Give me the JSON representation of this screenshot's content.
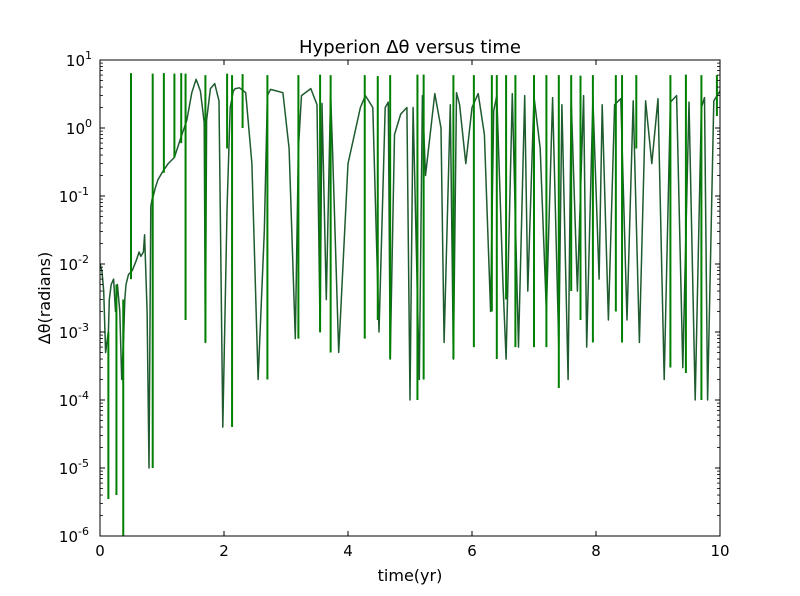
{
  "chart_data": {
    "type": "line",
    "title": "Hyperion Δθ versus time",
    "xlabel": "time(yr)",
    "ylabel": "Δθ(radians)",
    "xlim": [
      0,
      10
    ],
    "ylim": [
      1e-06,
      10
    ],
    "yscale": "log",
    "grid": false,
    "legend": "none",
    "x_ticks": [
      {
        "value": 0,
        "label": "0"
      },
      {
        "value": 2,
        "label": "2"
      },
      {
        "value": 4,
        "label": "4"
      },
      {
        "value": 6,
        "label": "6"
      },
      {
        "value": 8,
        "label": "8"
      },
      {
        "value": 10,
        "label": "10"
      }
    ],
    "y_ticks": [
      {
        "value": 1e-06,
        "base": "10",
        "exp": "-6"
      },
      {
        "value": 1e-05,
        "base": "10",
        "exp": "-5"
      },
      {
        "value": 0.0001,
        "base": "10",
        "exp": "-4"
      },
      {
        "value": 0.001,
        "base": "10",
        "exp": "-3"
      },
      {
        "value": 0.01,
        "base": "10",
        "exp": "-2"
      },
      {
        "value": 0.1,
        "base": "10",
        "exp": "-1"
      },
      {
        "value": 1,
        "base": "10",
        "exp": "0"
      },
      {
        "value": 10,
        "base": "10",
        "exp": "1"
      }
    ],
    "colors": {
      "line_dark": "#1e5b2e",
      "line_bright": "#008000",
      "axes": "#000000"
    },
    "series": [
      {
        "x": [
          0.0,
          0.03,
          0.06,
          0.09,
          0.12,
          0.135,
          0.15,
          0.18,
          0.22,
          0.25,
          0.28,
          0.32,
          0.35,
          0.38,
          0.4,
          0.42,
          0.46,
          0.52,
          0.58,
          0.63,
          0.66,
          0.7,
          0.72,
          0.76,
          0.79,
          0.82,
          0.84,
          0.86,
          0.89,
          0.93,
          1.0,
          1.1,
          1.2,
          1.3,
          1.4,
          1.48,
          1.55,
          1.62,
          1.68,
          1.7,
          1.72,
          1.78,
          1.85,
          1.92,
          1.98,
          2.05,
          2.1,
          2.15,
          2.18,
          2.25,
          2.35,
          2.45,
          2.55,
          2.65,
          2.7,
          2.75,
          2.85,
          2.95,
          3.05,
          3.15,
          3.2,
          3.25,
          3.4,
          3.5,
          3.55,
          3.58,
          3.65,
          3.72,
          3.75,
          3.85,
          4.0,
          4.2,
          4.28,
          4.4,
          4.5,
          4.6,
          4.65,
          4.68,
          4.75,
          4.85,
          4.95,
          5.0,
          5.05,
          5.15,
          5.2,
          5.25,
          5.4,
          5.5,
          5.55,
          5.65,
          5.7,
          5.75,
          5.8,
          5.9,
          6.0,
          6.1,
          6.2,
          6.3,
          6.35,
          6.4,
          6.5,
          6.55,
          6.65,
          6.75,
          6.85,
          6.9,
          7.0,
          7.1,
          7.2,
          7.3,
          7.4,
          7.45,
          7.55,
          7.6,
          7.7,
          7.8,
          7.85,
          7.95,
          8.05,
          8.1,
          8.2,
          8.3,
          8.4,
          8.5,
          8.6,
          8.7,
          8.8,
          8.9,
          9.0,
          9.1,
          9.2,
          9.3,
          9.4,
          9.5,
          9.6,
          9.7,
          9.75,
          9.8,
          9.9,
          10.0
        ],
        "y": [
          0.01,
          0.008,
          0.004,
          0.0005,
          0.0008,
          0.001,
          0.003,
          0.005,
          0.006,
          0.002,
          0.005,
          0.002,
          0.0002,
          0.0008,
          0.003,
          0.005,
          0.007,
          0.008,
          0.011,
          0.015,
          0.013,
          0.015,
          0.027,
          0.002,
          1e-05,
          0.07,
          0.09,
          0.1,
          0.13,
          0.17,
          0.22,
          0.3,
          0.37,
          0.7,
          1.3,
          3.3,
          5.2,
          3.5,
          1.2,
          0.0007,
          1.3,
          3.8,
          4.5,
          2.5,
          4e-05,
          0.07,
          2.0,
          3.5,
          3.8,
          3.9,
          3.3,
          0.3,
          0.0002,
          0.03,
          3.0,
          3.7,
          3.5,
          3.3,
          0.5,
          0.0008,
          0.5,
          3.0,
          3.8,
          2.2,
          0.001,
          2.3,
          0.003,
          3.2,
          0.5,
          0.0005,
          0.3,
          2.0,
          3.0,
          2.0,
          0.001,
          2.0,
          2.4,
          0.0004,
          0.8,
          1.6,
          2.0,
          0.0001,
          2.0,
          0.0002,
          3.0,
          0.2,
          3.2,
          1.0,
          0.0007,
          2.2,
          0.0004,
          3.3,
          2.2,
          0.3,
          2.0,
          3.2,
          0.8,
          0.002,
          1.8,
          3.0,
          0.005,
          0.0004,
          3.2,
          0.0006,
          3.0,
          0.004,
          2.9,
          0.5,
          0.002,
          2.8,
          0.0006,
          2.2,
          0.0002,
          2.6,
          0.004,
          3.0,
          0.0006,
          2.7,
          0.006,
          2.2,
          0.0015,
          2.2,
          2.7,
          0.0015,
          2.5,
          0.0007,
          2.5,
          0.3,
          2.7,
          0.0002,
          2.4,
          3.0,
          0.0003,
          2.4,
          0.0001,
          2.0,
          2.8,
          0.0001,
          2.5,
          3.5
        ]
      }
    ],
    "spikes": [
      {
        "x": 0.135,
        "low": 3.5e-06,
        "high": 0.001
      },
      {
        "x": 0.265,
        "low": 4e-06,
        "high": 0.005
      },
      {
        "x": 0.375,
        "low": 1e-06,
        "high": 0.003
      },
      {
        "x": 0.5,
        "low": 0.006,
        "high": 6.4
      },
      {
        "x": 0.85,
        "low": 1e-05,
        "high": 6.3
      },
      {
        "x": 1.03,
        "low": 0.22,
        "high": 6.4
      },
      {
        "x": 1.2,
        "low": 0.37,
        "high": 6.3
      },
      {
        "x": 1.31,
        "low": 0.6,
        "high": 6.4
      },
      {
        "x": 1.38,
        "low": 0.0015,
        "high": 6.3
      },
      {
        "x": 1.7,
        "low": 0.0007,
        "high": 6.0
      },
      {
        "x": 2.05,
        "low": 0.5,
        "high": 6.3
      },
      {
        "x": 2.13,
        "low": 4e-05,
        "high": 6.0
      },
      {
        "x": 2.3,
        "low": 1.0,
        "high": 6.2
      },
      {
        "x": 2.7,
        "low": 0.0002,
        "high": 6.0
      },
      {
        "x": 3.2,
        "low": 0.0008,
        "high": 6.0
      },
      {
        "x": 3.55,
        "low": 0.001,
        "high": 6.1
      },
      {
        "x": 3.72,
        "low": 0.0005,
        "high": 6.0
      },
      {
        "x": 4.27,
        "low": 0.0008,
        "high": 6.0
      },
      {
        "x": 4.48,
        "low": 0.0015,
        "high": 5.8
      },
      {
        "x": 4.68,
        "low": 0.0004,
        "high": 6.0
      },
      {
        "x": 5.12,
        "low": 0.0001,
        "high": 6.1
      },
      {
        "x": 5.22,
        "low": 0.0002,
        "high": 6.1
      },
      {
        "x": 5.7,
        "low": 0.0004,
        "high": 6.0
      },
      {
        "x": 6.03,
        "low": 0.0006,
        "high": 6.0
      },
      {
        "x": 6.32,
        "low": 0.002,
        "high": 6.0
      },
      {
        "x": 6.4,
        "low": 0.0004,
        "high": 6.0
      },
      {
        "x": 6.55,
        "low": 0.003,
        "high": 6.0
      },
      {
        "x": 6.7,
        "low": 0.0006,
        "high": 6.0
      },
      {
        "x": 7.0,
        "low": 0.0006,
        "high": 6.0
      },
      {
        "x": 7.2,
        "low": 0.0006,
        "high": 6.0
      },
      {
        "x": 7.4,
        "low": 0.00015,
        "high": 6.0
      },
      {
        "x": 7.6,
        "low": 0.004,
        "high": 6.0
      },
      {
        "x": 7.75,
        "low": 0.0015,
        "high": 5.9
      },
      {
        "x": 7.95,
        "low": 0.0007,
        "high": 6.0
      },
      {
        "x": 8.32,
        "low": 0.002,
        "high": 6.0
      },
      {
        "x": 8.42,
        "low": 0.0007,
        "high": 6.0
      },
      {
        "x": 8.65,
        "low": 0.5,
        "high": 6.0
      },
      {
        "x": 9.2,
        "low": 0.0003,
        "high": 6.0
      },
      {
        "x": 9.45,
        "low": 0.00025,
        "high": 6.1
      },
      {
        "x": 9.7,
        "low": 0.0001,
        "high": 6.0
      },
      {
        "x": 9.95,
        "low": 1.5,
        "high": 6.0
      }
    ]
  }
}
